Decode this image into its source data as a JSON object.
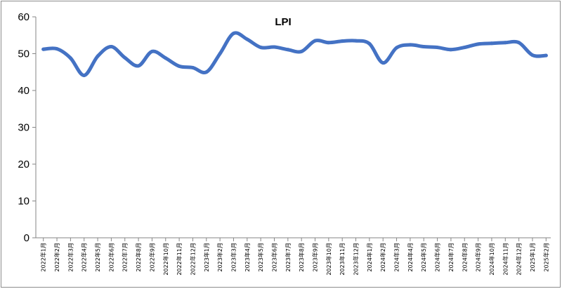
{
  "chart_data": {
    "type": "line",
    "title": "LPI",
    "xlabel": "",
    "ylabel": "",
    "ylim": [
      0,
      60
    ],
    "yticks": [
      "0",
      "10",
      "20",
      "30",
      "40",
      "50",
      "60"
    ],
    "grid": false,
    "legend": "none",
    "categories": [
      "2022年1月",
      "2022年2月",
      "2022年3月",
      "2022年4月",
      "2022年5月",
      "2022年6月",
      "2022年7月",
      "2022年8月",
      "2022年9月",
      "2022年10月",
      "2022年11月",
      "2022年12月",
      "2023年1月",
      "2023年2月",
      "2023年3月",
      "2023年4月",
      "2023年5月",
      "2023年6月",
      "2023年7月",
      "2023年8月",
      "2023年9月",
      "2023年10月",
      "2023年11月",
      "2023年12月",
      "2024年1月",
      "2024年2月",
      "2024年3月",
      "2024年4月",
      "2024年5月",
      "2024年6月",
      "2024年7月",
      "2024年8月",
      "2024年9月",
      "2024年10月",
      "2024年11月",
      "2024年12月",
      "2025年1月",
      "2025年2月"
    ],
    "series": [
      {
        "values": [
          51.2,
          51.3,
          48.8,
          44.1,
          49.3,
          51.9,
          48.9,
          46.7,
          50.6,
          48.8,
          46.6,
          46.2,
          45.0,
          50.0,
          55.5,
          53.9,
          51.7,
          51.8,
          51.1,
          50.6,
          53.5,
          53.0,
          53.4,
          53.5,
          52.7,
          47.5,
          51.6,
          52.4,
          51.9,
          51.7,
          51.1,
          51.7,
          52.6,
          52.8,
          53.0,
          53.0,
          49.6,
          49.5
        ]
      }
    ],
    "line_color": "#4472C4"
  }
}
